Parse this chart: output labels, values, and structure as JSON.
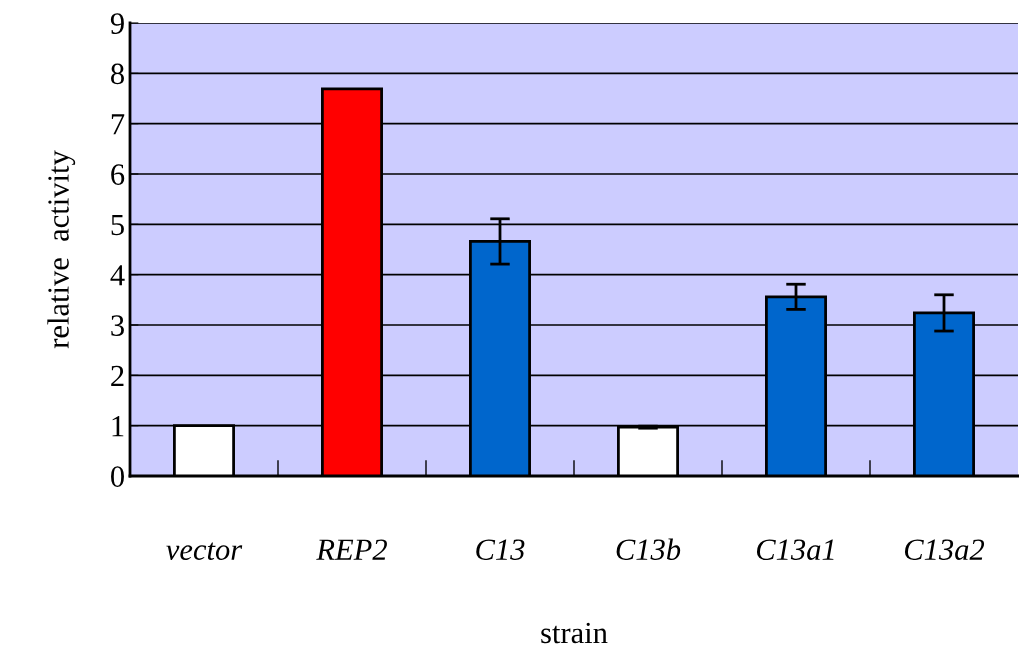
{
  "chart_data": {
    "type": "bar",
    "xlabel": "strain",
    "ylabel": "relative  activity",
    "categories": [
      "vector",
      "REP2",
      "C13",
      "C13b",
      "C13a1",
      "C13a2"
    ],
    "values": [
      1.0,
      7.69,
      4.66,
      0.97,
      3.56,
      3.24
    ],
    "errors": [
      null,
      null,
      0.45,
      0.02,
      0.25,
      0.36
    ],
    "colors": [
      "#ffffff",
      "#ff0000",
      "#0066cc",
      "#ffffff",
      "#0066cc",
      "#0066cc"
    ],
    "ylim": [
      0,
      9
    ],
    "yticks": [
      0,
      1,
      2,
      3,
      4,
      5,
      6,
      7,
      8,
      9
    ],
    "grid": "y"
  }
}
